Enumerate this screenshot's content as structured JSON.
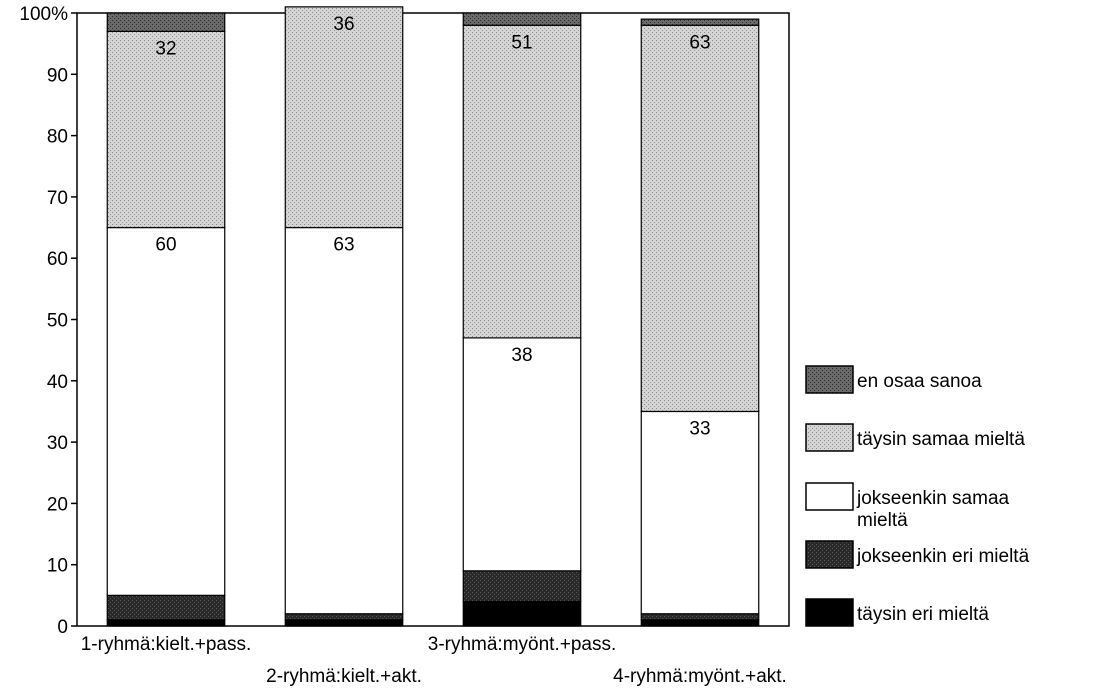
{
  "chart_data": {
    "type": "bar",
    "stacked": true,
    "percent": true,
    "categories": [
      "1-ryhmä:kielt.+pass.",
      "2-ryhmä:kielt.+akt.",
      "3-ryhmä:myönt.+pass.",
      "4-ryhmä:myönt.+akt."
    ],
    "series": [
      {
        "name": "täysin eri mieltä",
        "color": "#000000",
        "pattern": "none",
        "values": [
          1,
          1,
          4,
          1
        ]
      },
      {
        "name": "jokseenkin eri mieltä",
        "color": "#1c1c1c",
        "pattern": "dark-dots",
        "values": [
          4,
          1,
          5,
          1
        ]
      },
      {
        "name": "jokseenkin samaa mieltä",
        "color": "#ffffff",
        "pattern": "none",
        "values": [
          60,
          63,
          38,
          33
        ]
      },
      {
        "name": "täysin samaa mieltä",
        "color": "#c0c0c0",
        "pattern": "light-dots",
        "values": [
          32,
          36,
          51,
          63
        ]
      },
      {
        "name": "en osaa sanoa",
        "color": "#555555",
        "pattern": "mid-dots",
        "values": [
          3,
          0,
          2,
          1
        ]
      }
    ],
    "data_labels": {
      "jokseenkin samaa mieltä": [
        "60",
        "63",
        "38",
        "33"
      ],
      "täysin samaa mieltä": [
        "32",
        "36",
        "51",
        "63"
      ]
    },
    "yticks": [
      {
        "value": 0,
        "label": "0"
      },
      {
        "value": 10,
        "label": "10"
      },
      {
        "value": 20,
        "label": "20"
      },
      {
        "value": 30,
        "label": "30"
      },
      {
        "value": 40,
        "label": "40"
      },
      {
        "value": 50,
        "label": "50"
      },
      {
        "value": 60,
        "label": "60"
      },
      {
        "value": 70,
        "label": "70"
      },
      {
        "value": 80,
        "label": "80"
      },
      {
        "value": 90,
        "label": "90"
      },
      {
        "value": 100,
        "label": "100%"
      }
    ],
    "ylim": [
      0,
      100
    ],
    "grid": false,
    "legend_position": "right",
    "legend_order": [
      "en osaa sanoa",
      "täysin samaa mieltä",
      "jokseenkin samaa mieltä",
      "jokseenkin eri mieltä",
      "täysin eri mieltä"
    ],
    "legend_lines": {
      "en osaa sanoa": [
        "en osaa sanoa"
      ],
      "täysin samaa mieltä": [
        "täysin samaa mieltä"
      ],
      "jokseenkin samaa mieltä": [
        "jokseenkin samaa",
        "mieltä"
      ],
      "jokseenkin eri mieltä": [
        "jokseenkin eri mieltä"
      ],
      "täysin eri mieltä": [
        "täysin eri mieltä"
      ]
    }
  }
}
